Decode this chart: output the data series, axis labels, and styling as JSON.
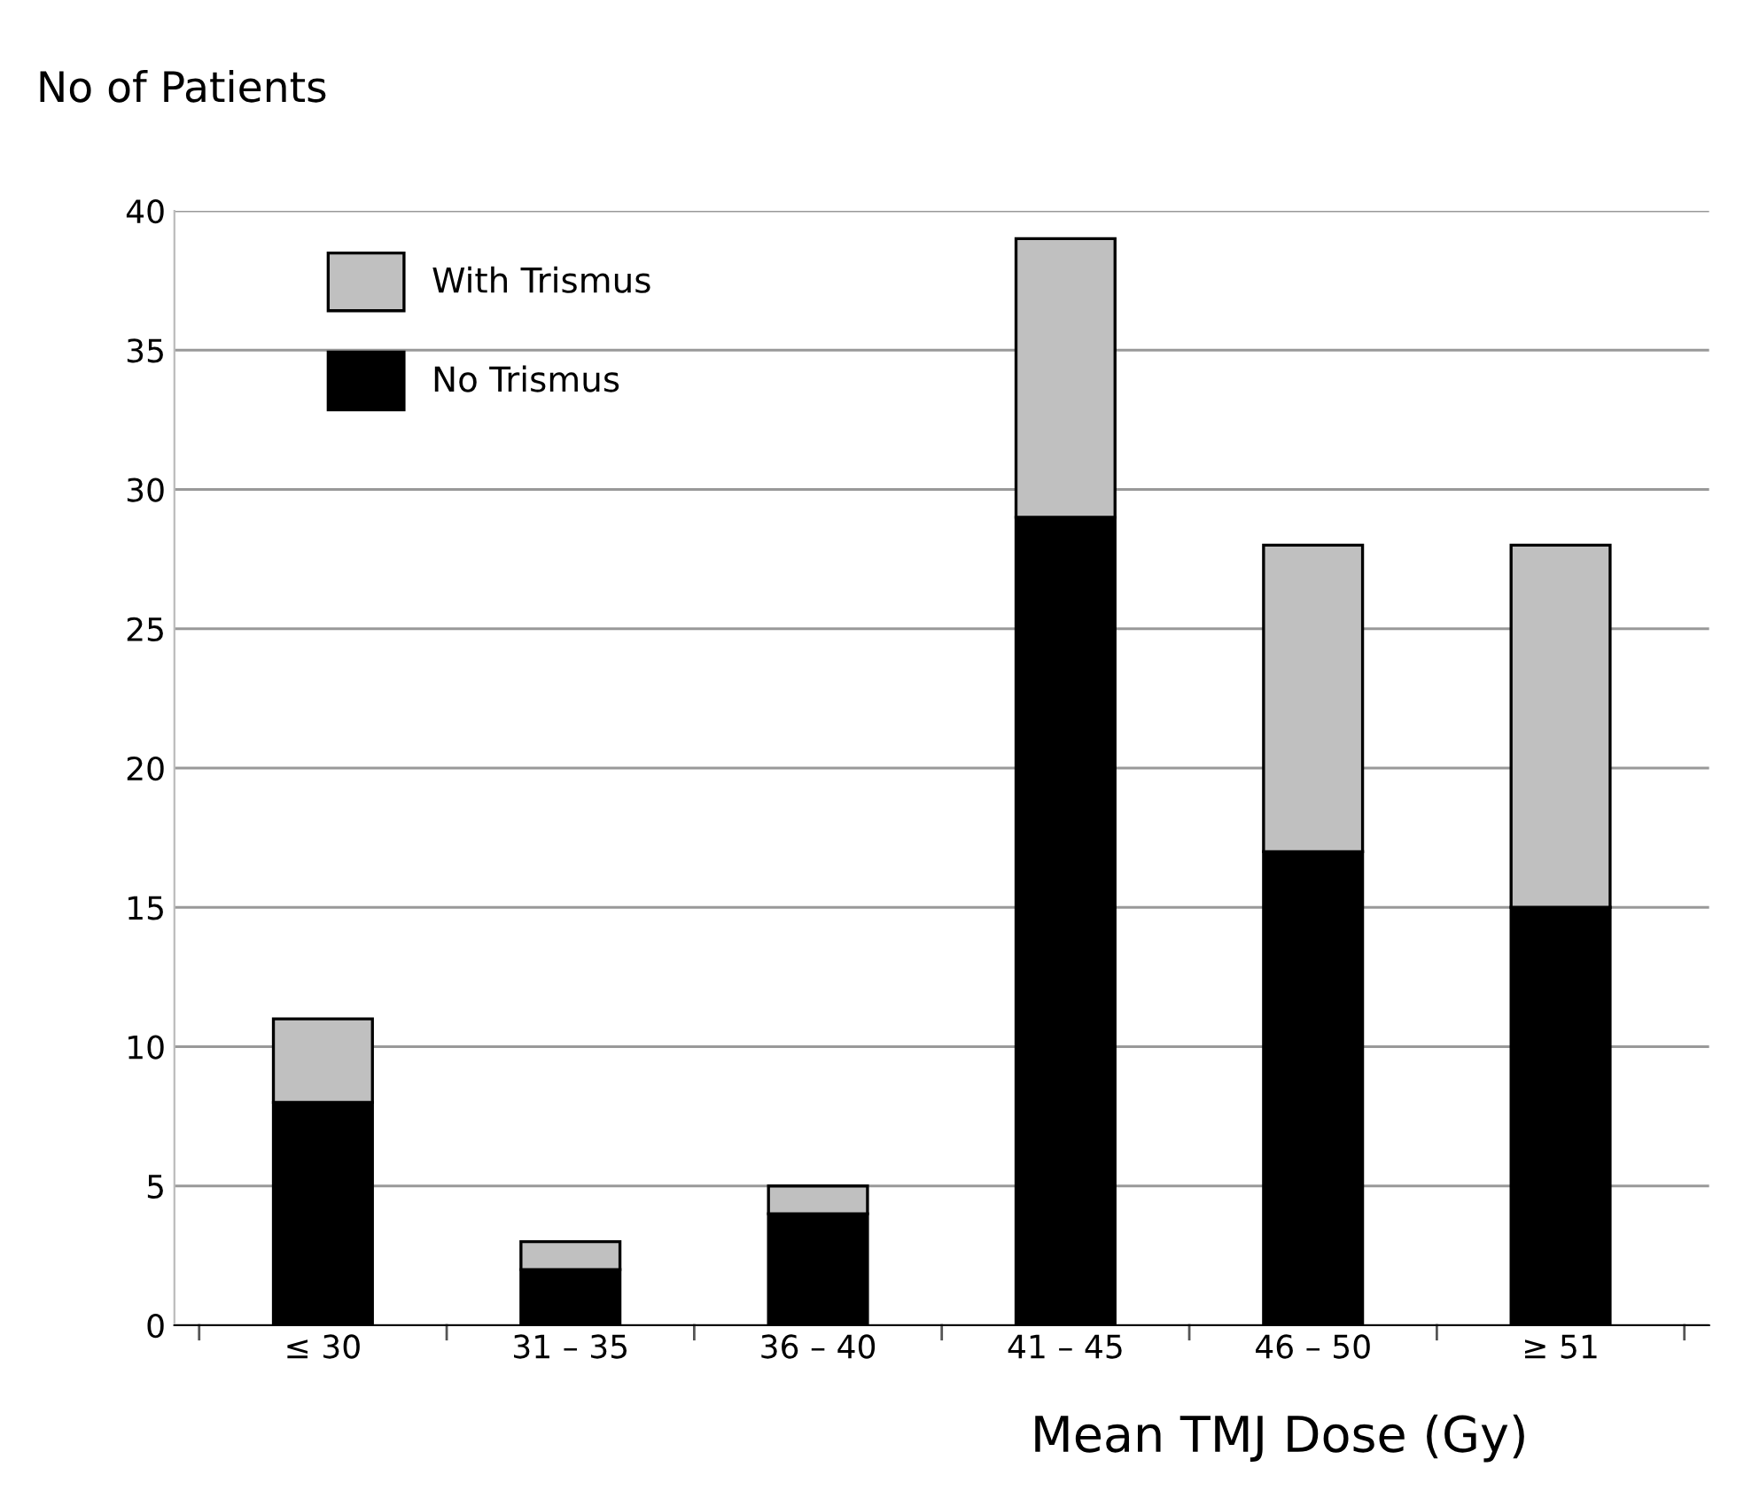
{
  "chart_data": {
    "type": "bar",
    "stacked": true,
    "ylabel": "No of Patients",
    "xlabel": "Mean TMJ Dose (Gy)",
    "categories": [
      "≤ 30",
      "31 – 35",
      "36 – 40",
      "41 – 45",
      "46 – 50",
      "≥ 51"
    ],
    "series": [
      {
        "name": "No Trismus",
        "color": "#000000",
        "values": [
          8,
          2,
          4,
          29,
          17,
          15
        ]
      },
      {
        "name": "With Trismus",
        "color": "#c0c0c0",
        "values": [
          3,
          1,
          1,
          10,
          11,
          13
        ]
      }
    ],
    "ylim": [
      0,
      40
    ],
    "yticks": [
      0,
      5,
      10,
      15,
      20,
      25,
      30,
      35,
      40
    ],
    "grid": "y",
    "legend": "top left"
  }
}
